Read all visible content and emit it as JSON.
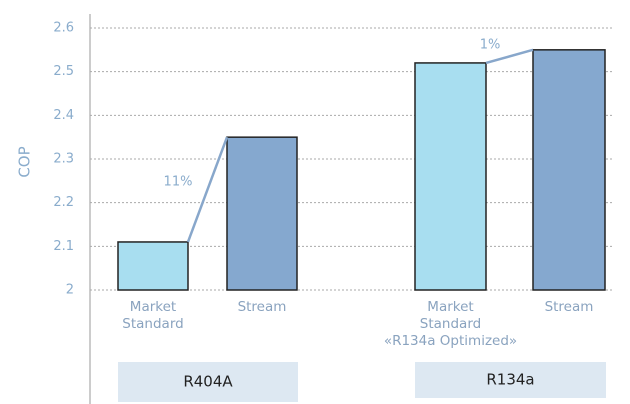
{
  "chart_data": {
    "type": "bar",
    "ylabel": "COP",
    "ylim": [
      2,
      2.6
    ],
    "yticks": [
      2,
      2.1,
      2.2,
      2.3,
      2.4,
      2.5,
      2.6
    ],
    "grid": true,
    "groups": [
      {
        "name": "R404A",
        "categories": [
          [
            "Market",
            "Standard"
          ],
          [
            "Stream"
          ]
        ],
        "values": [
          2.11,
          2.35
        ],
        "colors": [
          "#a8def0",
          "#85a8cf"
        ],
        "annotation": "11%"
      },
      {
        "name": "R134a",
        "categories": [
          [
            "Market",
            "Standard",
            "«R134a Optimized»"
          ],
          [
            "Stream"
          ]
        ],
        "values": [
          2.52,
          2.55
        ],
        "colors": [
          "#a8def0",
          "#85a8cf"
        ],
        "annotation": "1%"
      }
    ]
  }
}
